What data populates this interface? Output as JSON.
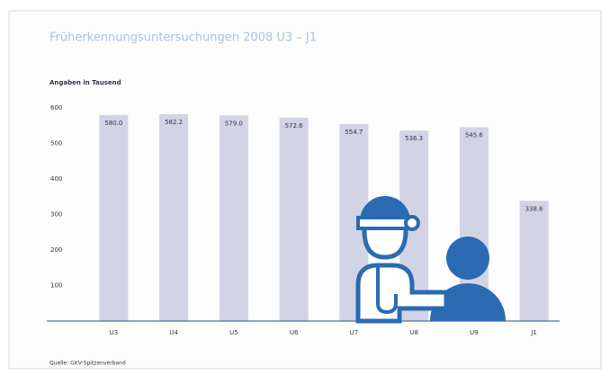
{
  "chart_data": {
    "type": "bar",
    "title": "Früherkennungsuntersuchungen 2008 U3 – J1",
    "y_label": "Angaben in Tausend",
    "source": "Quelle: GKV-Spitzenverband",
    "categories": [
      "U3",
      "U4",
      "U5",
      "U6",
      "U7",
      "U8",
      "U9",
      "J1"
    ],
    "values": [
      580.0,
      582.2,
      579.0,
      572.6,
      554.7,
      536.3,
      545.6,
      338.6
    ],
    "value_labels": [
      "580.0",
      "582.2",
      "579.0",
      "572.6",
      "554.7",
      "536.3",
      "545.6",
      "338.6"
    ],
    "color": "#d3d3e6",
    "ylim": [
      0,
      600
    ],
    "yticks": [
      100,
      200,
      300,
      400,
      500,
      600
    ]
  }
}
